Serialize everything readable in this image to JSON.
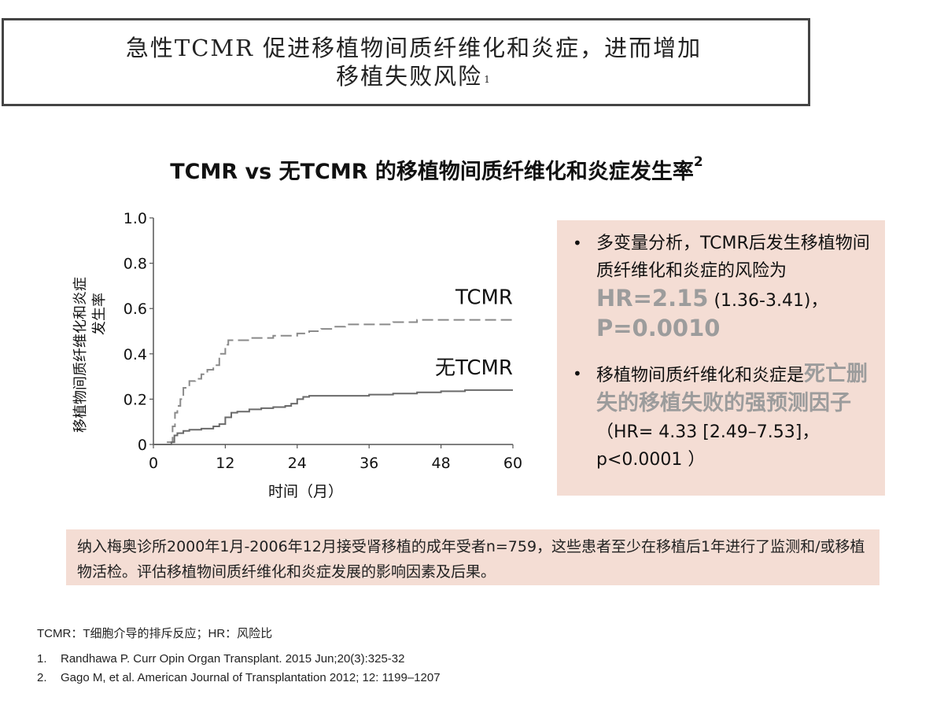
{
  "title": {
    "line1": "急性TCMR 促进移植物间质纤维化和炎症，进而增加",
    "line2": "移植失败风险",
    "line2_sup": "1"
  },
  "subtitle": {
    "text": "TCMR vs 无TCMR 的移植物间质纤维化和炎症发生率",
    "sup": "2"
  },
  "chart_data": {
    "type": "line",
    "ylabel_line1": "移植物间质纤维化和炎症",
    "ylabel_line2": "发生率",
    "xlabel": "时间（月）",
    "xlim": [
      0,
      60
    ],
    "ylim": [
      0,
      1.0
    ],
    "x_ticks": [
      "0",
      "12",
      "24",
      "36",
      "48",
      "60"
    ],
    "y_ticks": [
      "0",
      "0.2",
      "0.4",
      "0.6",
      "0.8",
      "1.0"
    ],
    "grid": false,
    "series": [
      {
        "name": "TCMR",
        "style": "dashed",
        "color": "#8a8a8a",
        "points": [
          [
            0,
            0
          ],
          [
            1,
            0
          ],
          [
            2,
            0.01
          ],
          [
            3,
            0.01
          ],
          [
            3.2,
            0.08
          ],
          [
            3.6,
            0.14
          ],
          [
            4,
            0.17
          ],
          [
            4.5,
            0.2
          ],
          [
            5,
            0.25
          ],
          [
            6,
            0.28
          ],
          [
            7,
            0.29
          ],
          [
            8,
            0.31
          ],
          [
            9,
            0.33
          ],
          [
            10,
            0.35
          ],
          [
            11,
            0.4
          ],
          [
            12,
            0.44
          ],
          [
            12.5,
            0.46
          ],
          [
            14,
            0.46
          ],
          [
            16,
            0.47
          ],
          [
            18,
            0.47
          ],
          [
            20,
            0.48
          ],
          [
            24,
            0.49
          ],
          [
            26,
            0.5
          ],
          [
            28,
            0.51
          ],
          [
            30,
            0.52
          ],
          [
            32,
            0.53
          ],
          [
            36,
            0.53
          ],
          [
            40,
            0.54
          ],
          [
            44,
            0.55
          ],
          [
            48,
            0.55
          ],
          [
            52,
            0.55
          ],
          [
            56,
            0.55
          ],
          [
            60,
            0.55
          ]
        ]
      },
      {
        "name": "无TCMR",
        "style": "solid",
        "color": "#6a6a6a",
        "points": [
          [
            0,
            0
          ],
          [
            2,
            0
          ],
          [
            3,
            0.01
          ],
          [
            3.5,
            0.04
          ],
          [
            4,
            0.05
          ],
          [
            5,
            0.06
          ],
          [
            6,
            0.065
          ],
          [
            8,
            0.07
          ],
          [
            10,
            0.08
          ],
          [
            11,
            0.09
          ],
          [
            12,
            0.12
          ],
          [
            13,
            0.14
          ],
          [
            14,
            0.145
          ],
          [
            16,
            0.155
          ],
          [
            18,
            0.16
          ],
          [
            20,
            0.165
          ],
          [
            22,
            0.17
          ],
          [
            23,
            0.18
          ],
          [
            24,
            0.2
          ],
          [
            25,
            0.21
          ],
          [
            26,
            0.215
          ],
          [
            30,
            0.215
          ],
          [
            36,
            0.22
          ],
          [
            40,
            0.225
          ],
          [
            44,
            0.23
          ],
          [
            48,
            0.235
          ],
          [
            52,
            0.24
          ],
          [
            56,
            0.24
          ],
          [
            60,
            0.24
          ]
        ]
      }
    ]
  },
  "info_box": {
    "bullet1_text": "多变量分析，TCMR后发生移植物间质纤维化和炎症的风险为",
    "bullet1_hr": "HR=2.15",
    "bullet1_ci": " (1.36-3.41)，",
    "bullet1_p": "P=0.0010",
    "bullet2_text": "移植物间质纤维化和炎症是",
    "bullet2_strong": "死亡删失的移植失败的强预测因子",
    "bullet2_tail": "（HR= 4.33 [2.49–7.53]，p<0.0001 ）"
  },
  "bottom_note": "纳入梅奥诊所2000年1月-2006年12月接受肾移植的成年受者n=759，这些患者至少在移植后1年进行了监测和/或移植物活检。评估移植物间质纤维化和炎症发展的影响因素及后果。",
  "abbreviations": "TCMR：T细胞介导的排斥反应；HR：风险比",
  "references": [
    {
      "num": "1.",
      "text": "Randhawa P. Curr Opin Organ Transplant. 2015 Jun;20(3):325-32"
    },
    {
      "num": "2.",
      "text": "Gago M, et al. American Journal of Transplantation 2012; 12: 1199–1207"
    }
  ]
}
